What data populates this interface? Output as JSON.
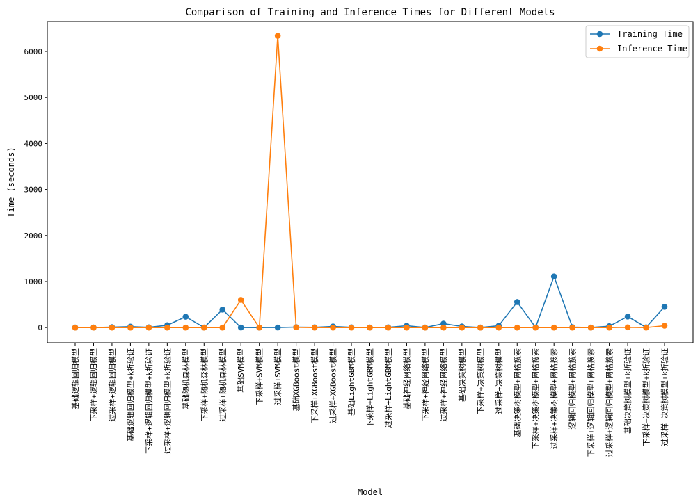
{
  "chart_data": {
    "type": "line",
    "title": "Comparison of Training and Inference Times for Different Models",
    "xlabel": "Model",
    "ylabel": "Time (seconds)",
    "ylim": [
      -330,
      6650
    ],
    "yticks": [
      0,
      1000,
      2000,
      3000,
      4000,
      5000,
      6000
    ],
    "grid": false,
    "legend_position": "top-right",
    "categories": [
      "基础逻辑回归模型",
      "下采样+逻辑回归模型",
      "过采样+逻辑回归模型",
      "基础逻辑回归模型+k折验证",
      "下采样+逻辑回归模型+k折验证",
      "过采样+逻辑回归模型+k折验证",
      "基础随机森林模型",
      "下采样+随机森林模型",
      "过采样+随机森林模型",
      "基础SVM模型",
      "下采样+SVM模型",
      "过采样+SVM模型",
      "基础XGBoost模型",
      "下采样+XGBoost模型",
      "过采样+XGBoost模型",
      "基础LightGBM模型",
      "下采样+LightGBM模型",
      "过采样+LightGBM模型",
      "基础神经网络模型",
      "下采样+神经网络模型",
      "过采样+神经网络模型",
      "基础决策树模型",
      "下采样+决策树模型",
      "过采样+决策树模型",
      "基础决策树模型+网格搜索",
      "下采样+决策树模型+网格搜索",
      "过采样+决策树模型+网格搜索",
      "逻辑回归模型+网格搜索",
      "下采样+逻辑回归模型+网格搜索",
      "过采样+逻辑回归模型+网格搜索",
      "基础决策树模型+k折验证",
      "下采样+决策树模型+k折验证",
      "过采样+决策树模型+k折验证"
    ],
    "series": [
      {
        "name": "Training Time",
        "color": "#1f77b4",
        "values": [
          2,
          1,
          10,
          20,
          5,
          50,
          235,
          2,
          390,
          1,
          0,
          1,
          10,
          5,
          25,
          5,
          2,
          5,
          40,
          2,
          85,
          25,
          2,
          40,
          555,
          3,
          1110,
          10,
          2,
          30,
          240,
          5,
          450
        ]
      },
      {
        "name": "Inference Time",
        "color": "#ff7f0e",
        "values": [
          0,
          0,
          0,
          0,
          0,
          0,
          0,
          0,
          0,
          600,
          0,
          6340,
          5,
          0,
          0,
          0,
          0,
          0,
          0,
          0,
          0,
          0,
          0,
          0,
          0,
          0,
          0,
          0,
          0,
          0,
          5,
          0,
          40
        ]
      }
    ]
  }
}
